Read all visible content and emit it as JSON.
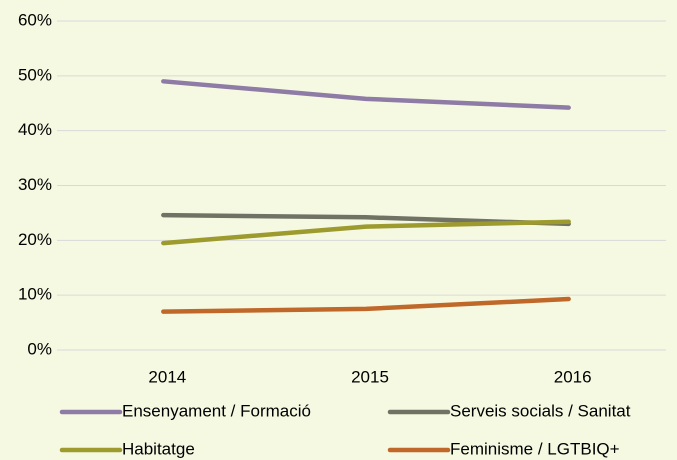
{
  "chart_data": {
    "type": "line",
    "categories": [
      "2014",
      "2015",
      "2016"
    ],
    "series": [
      {
        "name": "Ensenyament / Formació",
        "color": "#8e7ba6",
        "values": [
          49.0,
          45.8,
          44.2
        ]
      },
      {
        "name": "Serveis socials / Sanitat",
        "color": "#707264",
        "values": [
          24.6,
          24.2,
          23.0
        ]
      },
      {
        "name": "Habitatge",
        "color": "#9d9a2e",
        "values": [
          19.5,
          22.5,
          23.4
        ]
      },
      {
        "name": "Feminisme / LGTBIQ+",
        "color": "#c0682a",
        "values": [
          7.0,
          7.5,
          9.3
        ]
      }
    ],
    "ylim": [
      0,
      60
    ],
    "yticks": [
      {
        "value": 0,
        "label": "0%"
      },
      {
        "value": 10,
        "label": "10%"
      },
      {
        "value": 20,
        "label": "20%"
      },
      {
        "value": 30,
        "label": "30%"
      },
      {
        "value": 40,
        "label": "40%"
      },
      {
        "value": 50,
        "label": "50%"
      },
      {
        "value": 60,
        "label": "60%"
      }
    ],
    "grid": true,
    "legend": "bottom"
  }
}
